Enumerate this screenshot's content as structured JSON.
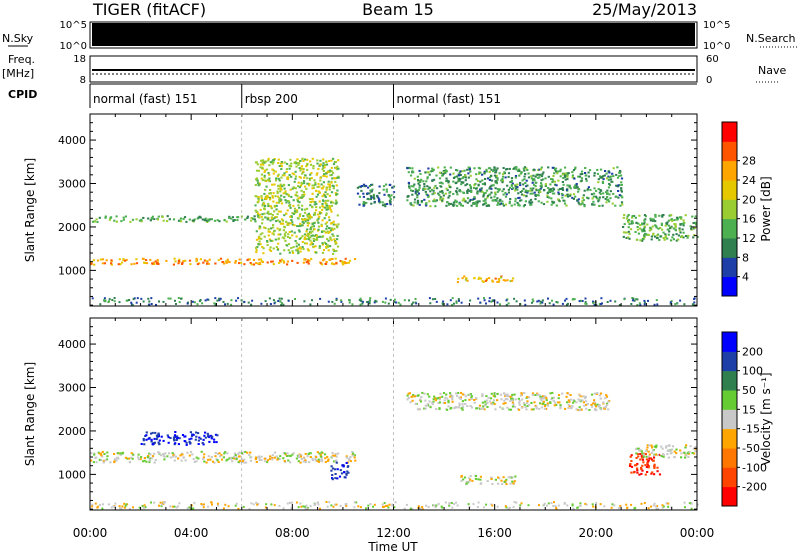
{
  "header": {
    "station": "TIGER (fitACF)",
    "beam": "Beam 15",
    "date": "25/May/2013"
  },
  "panels": {
    "nsky": {
      "left_label": "N.Sky",
      "right_label": "N.Search",
      "ticks_left": [
        "10^5",
        "10^0"
      ],
      "ticks_right": [
        "10^5",
        "10^0"
      ]
    },
    "freq": {
      "left_label_1": "Freq.",
      "left_label_2": "[MHz]",
      "right_label": "Nave",
      "ticks_left": [
        "18",
        "8"
      ],
      "ticks_right": [
        "60",
        "0"
      ]
    },
    "cpid": {
      "label": "CPID",
      "segments": [
        {
          "text": "normal (fast) 151",
          "start_hour": 0
        },
        {
          "text": "rbsp 200",
          "start_hour": 6
        },
        {
          "text": "normal (fast) 151",
          "start_hour": 12
        }
      ]
    }
  },
  "chart_data": [
    {
      "type": "heatmap",
      "name": "power",
      "ylabel": "Slant Range [km]",
      "xlim": [
        0,
        24
      ],
      "ylim": [
        180,
        4600
      ],
      "yticks": [
        1000,
        2000,
        3000,
        4000
      ],
      "colorbar": {
        "label": "Power [dB]",
        "ticks": [
          4,
          8,
          12,
          16,
          20,
          24,
          28
        ],
        "colors": [
          "#0000ff",
          "#1f3fa8",
          "#2f7f4f",
          "#4caf50",
          "#9acd32",
          "#e6c800",
          "#ffa500",
          "#ff5500",
          "#ff0000"
        ]
      },
      "echo_bands": [
        {
          "start": 0,
          "end": 10.5,
          "range_start": 1180,
          "range_end": 1200,
          "value": 26
        },
        {
          "start": 0,
          "end": 6.5,
          "range_start": 2120,
          "range_end": 2180,
          "value": 14
        },
        {
          "start": 6.5,
          "end": 9.8,
          "range_start": 1400,
          "range_end": 3600,
          "value": 18
        },
        {
          "start": 10.5,
          "end": 12,
          "range_start": 2500,
          "range_end": 3000,
          "value": 10
        },
        {
          "start": 12.5,
          "end": 21,
          "range_start": 2500,
          "range_end": 3400,
          "value": 12
        },
        {
          "start": 14.5,
          "end": 16.8,
          "range_start": 700,
          "range_end": 800,
          "value": 24
        },
        {
          "start": 21,
          "end": 24,
          "range_start": 1700,
          "range_end": 2300,
          "value": 14
        }
      ]
    },
    {
      "type": "heatmap",
      "name": "velocity",
      "xlabel": "Time UT",
      "ylabel": "Slant Range [km]",
      "xlim": [
        0,
        24
      ],
      "ylim": [
        180,
        4600
      ],
      "xticks": [
        "00:00",
        "04:00",
        "08:00",
        "12:00",
        "16:00",
        "20:00",
        "00:00"
      ],
      "yticks": [
        1000,
        2000,
        3000,
        4000
      ],
      "colorbar": {
        "label": "Velocity [m s⁻¹]",
        "ticks": [
          200,
          100,
          50,
          15,
          -15,
          -50,
          -100,
          -200
        ],
        "colors": [
          "#0000ff",
          "#1f3fa8",
          "#2f7f4f",
          "#66cc33",
          "#c8c8c8",
          "#ffa500",
          "#ff7700",
          "#ff4400",
          "#ff0000"
        ]
      },
      "echo_bands": [
        {
          "start": 0,
          "end": 10.5,
          "range_start": 1200,
          "range_end": 1450,
          "value": 0
        },
        {
          "start": 2,
          "end": 5,
          "range_start": 1700,
          "range_end": 2000,
          "value": 200
        },
        {
          "start": 9.5,
          "end": 10.2,
          "range_start": 900,
          "range_end": 1300,
          "value": 200
        },
        {
          "start": 12.5,
          "end": 20.5,
          "range_start": 2500,
          "range_end": 2900,
          "value": 0
        },
        {
          "start": 14.5,
          "end": 16.8,
          "range_start": 700,
          "range_end": 900,
          "value": 0
        },
        {
          "start": 21.3,
          "end": 22.5,
          "range_start": 1000,
          "range_end": 1500,
          "value": -200
        },
        {
          "start": 21.5,
          "end": 24,
          "range_start": 1400,
          "range_end": 1700,
          "value": 0
        }
      ]
    }
  ]
}
